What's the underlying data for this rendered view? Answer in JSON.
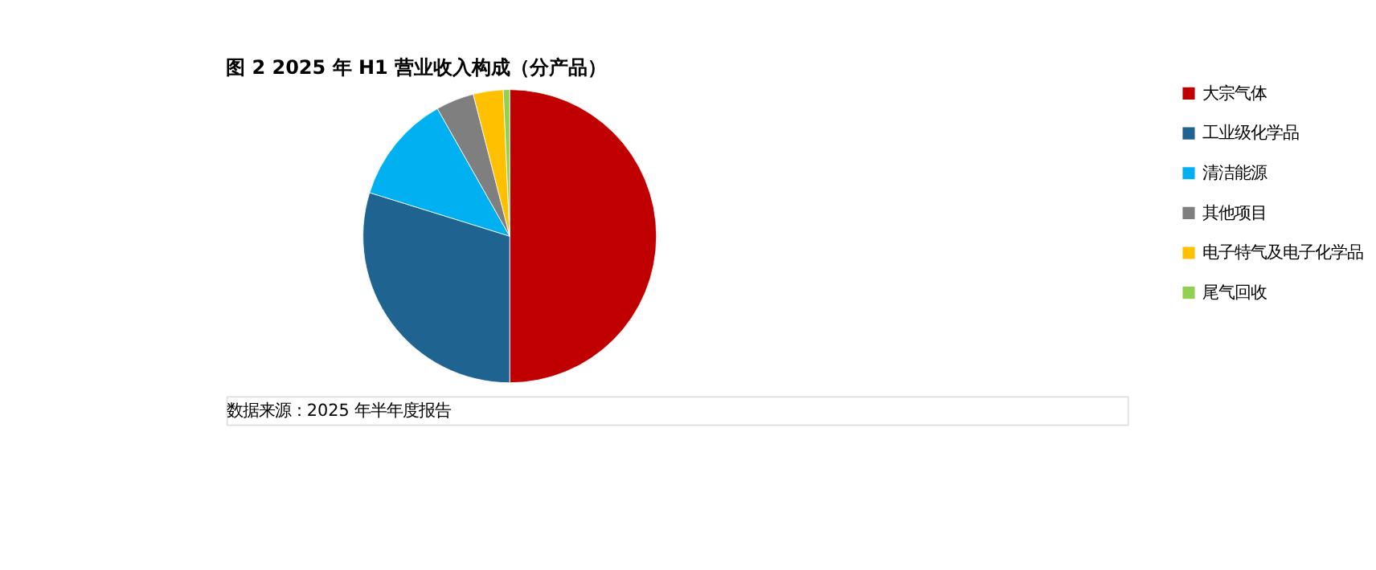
{
  "chart_data": {
    "type": "pie",
    "title": "图 2 2025 年 H1 营业收入构成（分产品）",
    "categories": [
      "大宗气体",
      "工业级化学品",
      "清洁能源",
      "其他项目",
      "电子特气及电子化学品",
      "尾气回收"
    ],
    "values": [
      50,
      29.8,
      12,
      4.2,
      3.3,
      0.7
    ],
    "colors": [
      "#c00000",
      "#1f6391",
      "#00b0f0",
      "#7f7f7f",
      "#ffc000",
      "#92d050"
    ],
    "legend": "right",
    "annotations": [
      "数据来源：2025 年半年度报告"
    ]
  }
}
